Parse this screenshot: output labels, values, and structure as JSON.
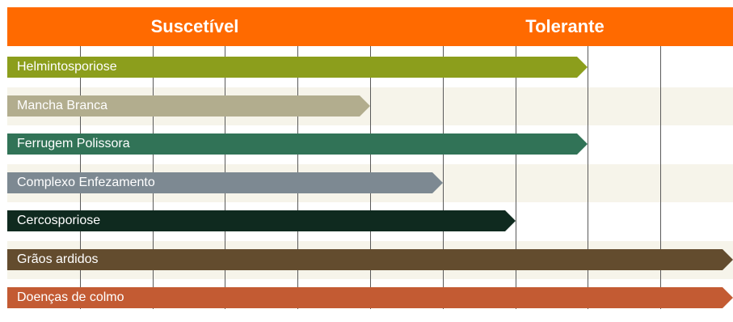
{
  "header": {
    "left_label": "Suscetível",
    "right_label": "Tolerante",
    "color": "#ff6a00"
  },
  "chart_data": {
    "type": "bar",
    "orientation": "horizontal",
    "categories": [
      "Helmintosporiose",
      "Mancha Branca",
      "Ferrugem Polissora",
      "Complexo Enfezamento",
      "Cercosporiose",
      "Grãos ardidos",
      "Doenças de colmo"
    ],
    "values": [
      8,
      5,
      8,
      6,
      7,
      10,
      10
    ],
    "colors": [
      "#8c9e1c",
      "#b2ad8e",
      "#317357",
      "#7d8992",
      "#0f2a1f",
      "#634c2e",
      "#c35b33"
    ],
    "xlim": [
      0,
      10
    ],
    "grid": true
  }
}
